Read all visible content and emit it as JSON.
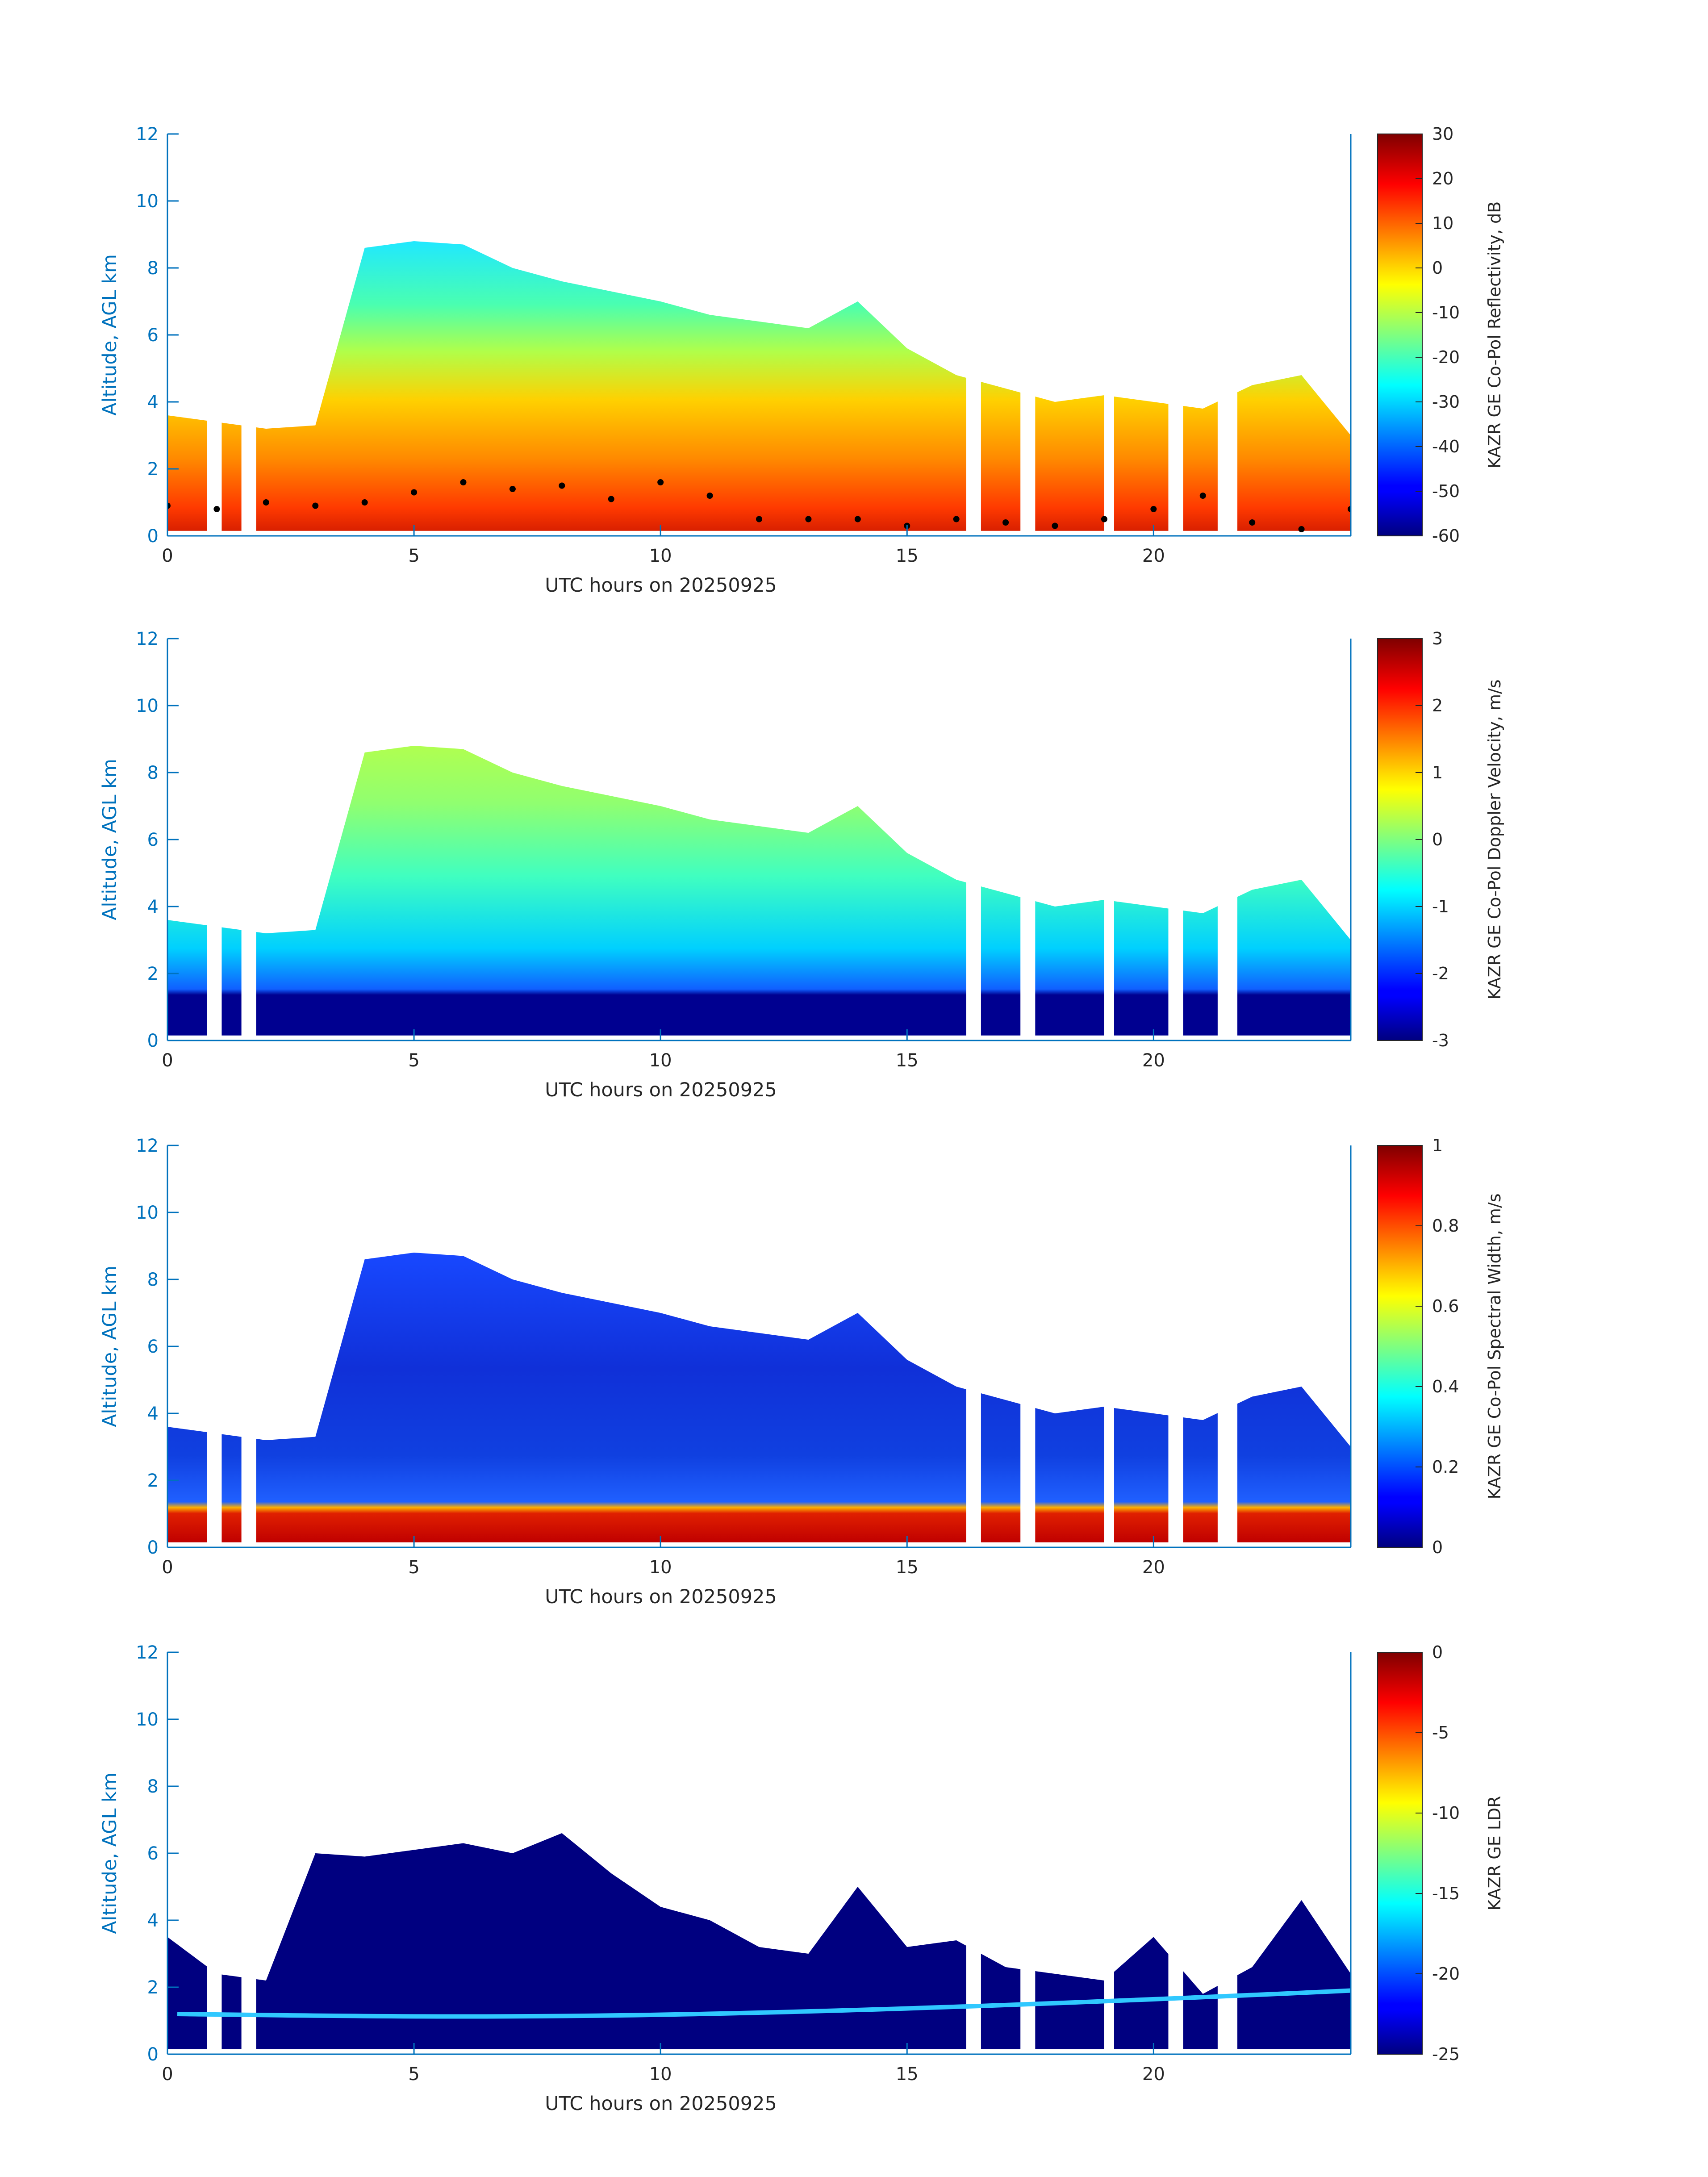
{
  "chart_data": [
    {
      "type": "heatmap",
      "xlabel": "UTC hours on 20250925",
      "ylabel": "Altitude, AGL km",
      "xlim": [
        0,
        24
      ],
      "ylim": [
        0,
        12
      ],
      "x_ticks": [
        "0",
        "5",
        "10",
        "15",
        "20"
      ],
      "y_ticks": [
        "0",
        "2",
        "4",
        "6",
        "8",
        "10",
        "12"
      ],
      "colorbar": {
        "label": "KAZR GE Co-Pol Reflectivity, dB",
        "min": -60,
        "max": 30,
        "ticks": [
          "30",
          "20",
          "10",
          "0",
          "-10",
          "-20",
          "-30",
          "-40",
          "-50",
          "-60"
        ]
      },
      "overlay_series": {
        "marker": "black dots",
        "x": [
          0,
          1,
          2,
          3,
          4,
          5,
          6,
          7,
          8,
          9,
          10,
          11,
          12,
          13,
          14,
          15,
          16,
          17,
          18,
          19,
          20,
          21,
          22,
          23,
          24
        ],
        "y": [
          0.9,
          0.8,
          1.0,
          0.9,
          1.0,
          1.3,
          1.6,
          1.4,
          1.5,
          1.1,
          1.6,
          1.2,
          0.5,
          0.5,
          0.5,
          0.3,
          0.5,
          0.4,
          0.3,
          0.5,
          0.8,
          1.2,
          0.4,
          0.2,
          0.8
        ]
      }
    },
    {
      "type": "heatmap",
      "xlabel": "UTC hours on 20250925",
      "ylabel": "Altitude, AGL km",
      "xlim": [
        0,
        24
      ],
      "ylim": [
        0,
        12
      ],
      "x_ticks": [
        "0",
        "5",
        "10",
        "15",
        "20"
      ],
      "y_ticks": [
        "0",
        "2",
        "4",
        "6",
        "8",
        "10",
        "12"
      ],
      "colorbar": {
        "label": "KAZR GE Co-Pol Doppler Velocity, m/s",
        "min": -3,
        "max": 3,
        "ticks": [
          "3",
          "2",
          "1",
          "0",
          "-1",
          "-2",
          "-3"
        ]
      }
    },
    {
      "type": "heatmap",
      "xlabel": "UTC hours on 20250925",
      "ylabel": "Altitude, AGL km",
      "xlim": [
        0,
        24
      ],
      "ylim": [
        0,
        12
      ],
      "x_ticks": [
        "0",
        "5",
        "10",
        "15",
        "20"
      ],
      "y_ticks": [
        "0",
        "2",
        "4",
        "6",
        "8",
        "10",
        "12"
      ],
      "colorbar": {
        "label": "KAZR GE Co-Pol Spectral Width, m/s",
        "min": 0,
        "max": 1,
        "ticks": [
          "1",
          "0.8",
          "0.6",
          "0.4",
          "0.2",
          "0"
        ]
      }
    },
    {
      "type": "heatmap",
      "xlabel": "UTC hours on 20250925",
      "ylabel": "Altitude, AGL km",
      "xlim": [
        0,
        24
      ],
      "ylim": [
        0,
        12
      ],
      "x_ticks": [
        "0",
        "5",
        "10",
        "15",
        "20"
      ],
      "y_ticks": [
        "0",
        "2",
        "4",
        "6",
        "8",
        "10",
        "12"
      ],
      "colorbar": {
        "label": "KAZR GE LDR",
        "min": -25,
        "max": 0,
        "ticks": [
          "0",
          "-5",
          "-10",
          "-15",
          "-20",
          "-25"
        ]
      }
    }
  ],
  "cloud": {
    "top_km": [
      3.6,
      3.4,
      3.2,
      3.3,
      8.6,
      8.8,
      8.7,
      8.0,
      7.6,
      7.3,
      7.0,
      6.6,
      6.4,
      6.2,
      7.0,
      5.6,
      4.8,
      4.4,
      4.0,
      4.2,
      4.0,
      3.8,
      4.5,
      4.8,
      3.0
    ],
    "top_ldr_km": [
      3.5,
      2.4,
      2.2,
      6.0,
      5.9,
      6.1,
      6.3,
      6.0,
      6.6,
      5.4,
      4.4,
      4.0,
      3.2,
      3.0,
      5.0,
      3.2,
      3.4,
      2.6,
      2.4,
      2.2,
      3.5,
      1.8,
      2.6,
      4.6,
      2.4
    ],
    "gap_hours": [
      [
        0.8,
        1.1
      ],
      [
        1.5,
        1.8
      ],
      [
        16.2,
        16.5
      ],
      [
        17.3,
        17.6
      ],
      [
        19.0,
        19.2
      ],
      [
        20.3,
        20.6
      ],
      [
        21.3,
        21.7
      ]
    ]
  }
}
